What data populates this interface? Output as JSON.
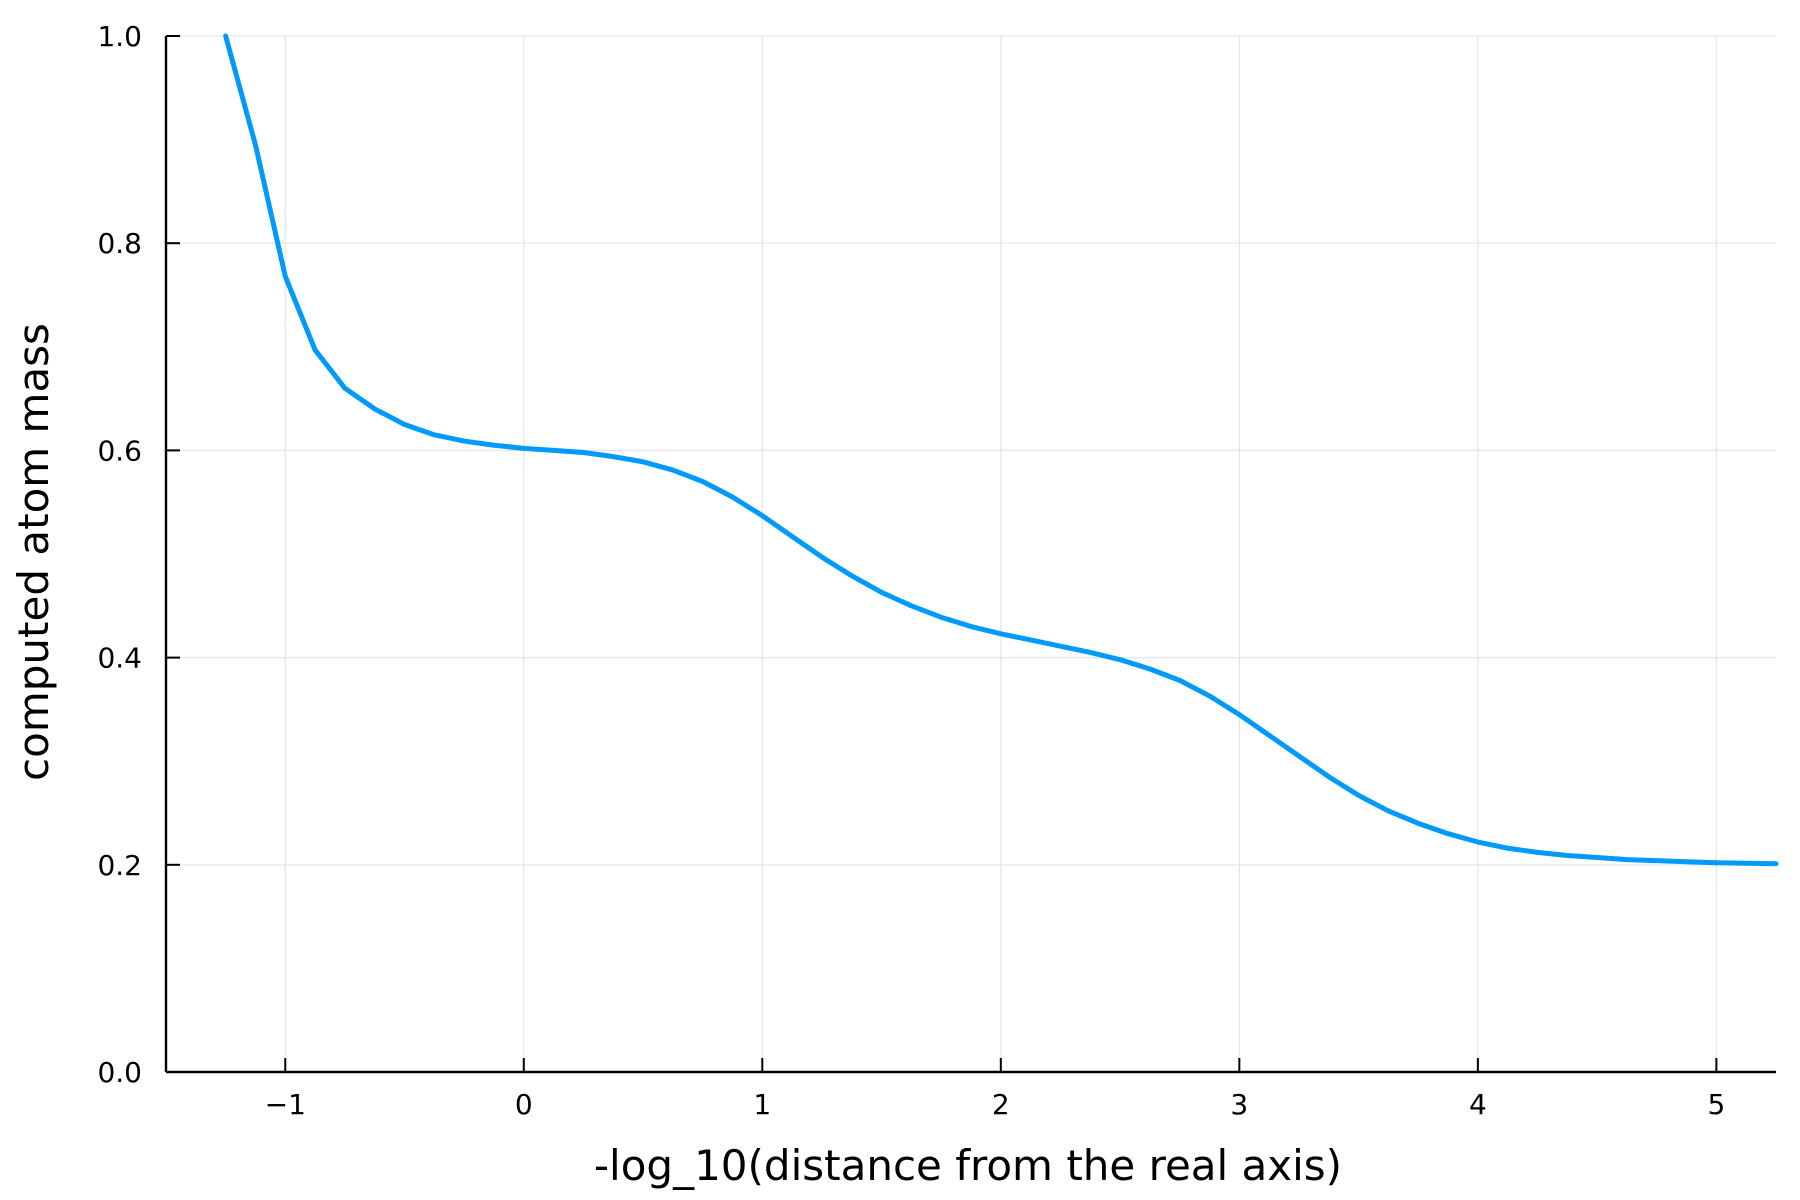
{
  "chart_data": {
    "type": "line",
    "title": "",
    "xlabel": "-log_10(distance from the real axis)",
    "ylabel": "computed atom mass",
    "xlim": [
      -1.5,
      5.25
    ],
    "ylim": [
      0.0,
      1.0
    ],
    "x_ticks": [
      -1,
      0,
      1,
      2,
      3,
      4,
      5
    ],
    "x_tick_labels": [
      "−1",
      "0",
      "1",
      "2",
      "3",
      "4",
      "5"
    ],
    "y_ticks": [
      0.0,
      0.2,
      0.4,
      0.6,
      0.8,
      1.0
    ],
    "y_tick_labels": [
      "0.0",
      "0.2",
      "0.4",
      "0.6",
      "0.8",
      "1.0"
    ],
    "grid": true,
    "legend": "none",
    "colors": {
      "series": "#009AFA",
      "grid": "#E5E5E5",
      "axis": "#000000"
    },
    "series": [
      {
        "x": [
          -1.25,
          -1.125,
          -1.0,
          -0.875,
          -0.75,
          -0.625,
          -0.5,
          -0.375,
          -0.25,
          -0.125,
          0.0,
          0.125,
          0.25,
          0.375,
          0.5,
          0.625,
          0.75,
          0.875,
          1.0,
          1.125,
          1.25,
          1.375,
          1.5,
          1.625,
          1.75,
          1.875,
          2.0,
          2.125,
          2.25,
          2.375,
          2.5,
          2.625,
          2.75,
          2.875,
          3.0,
          3.125,
          3.25,
          3.375,
          3.5,
          3.625,
          3.75,
          3.875,
          4.0,
          4.125,
          4.25,
          4.375,
          4.5,
          4.625,
          4.75,
          4.875,
          5.0,
          5.125,
          5.25
        ],
        "y": [
          1.0,
          0.895,
          0.768,
          0.697,
          0.66,
          0.64,
          0.625,
          0.615,
          0.609,
          0.605,
          0.602,
          0.6,
          0.598,
          0.594,
          0.589,
          0.581,
          0.57,
          0.555,
          0.537,
          0.517,
          0.497,
          0.479,
          0.463,
          0.45,
          0.439,
          0.43,
          0.423,
          0.417,
          0.411,
          0.405,
          0.398,
          0.389,
          0.378,
          0.363,
          0.345,
          0.325,
          0.305,
          0.285,
          0.267,
          0.252,
          0.24,
          0.23,
          0.222,
          0.216,
          0.212,
          0.209,
          0.207,
          0.205,
          0.204,
          0.203,
          0.202,
          0.2015,
          0.201
        ]
      }
    ]
  }
}
